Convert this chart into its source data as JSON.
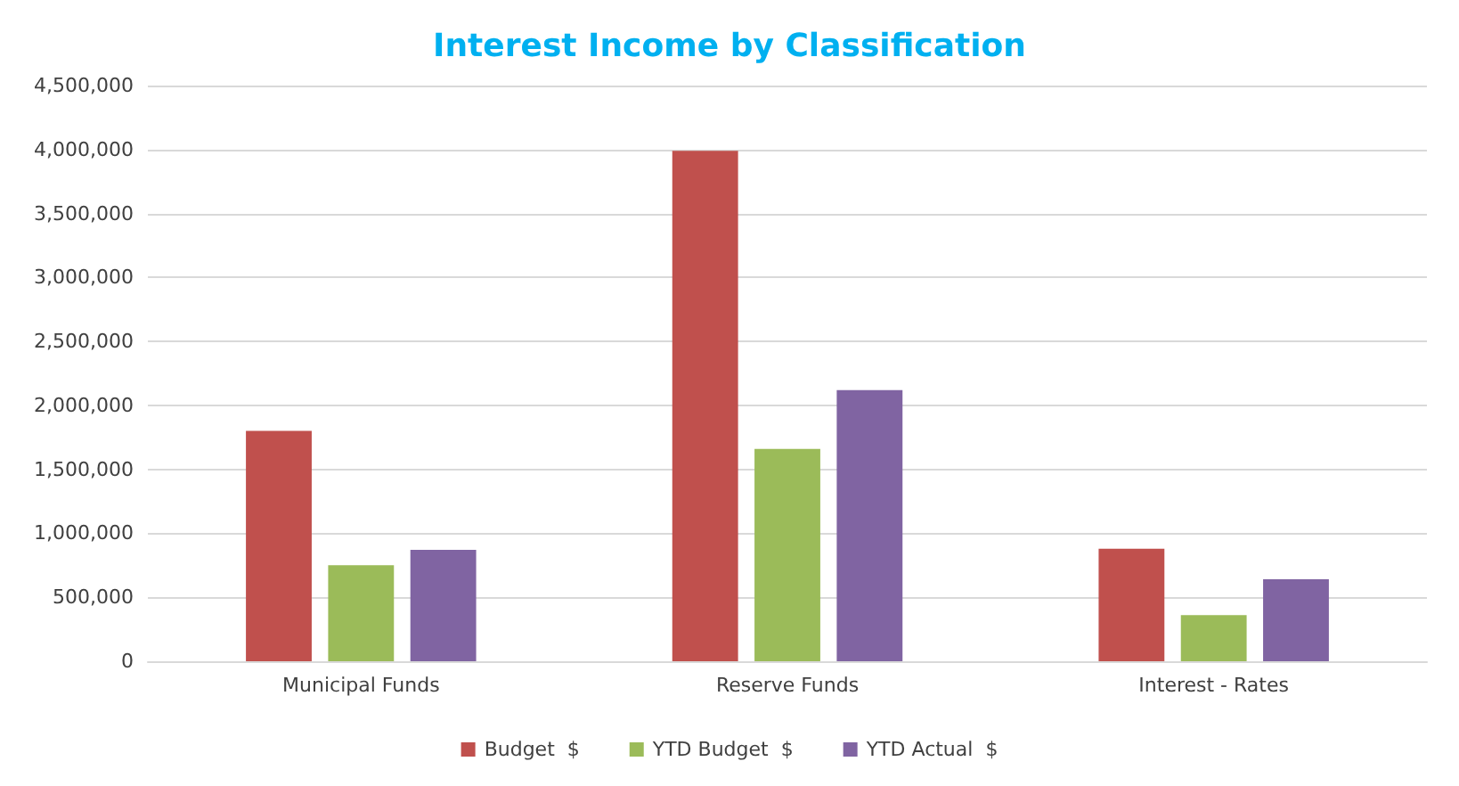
{
  "chart_data": {
    "type": "bar",
    "title": "Interest Income by Classification",
    "categories": [
      "Municipal Funds",
      "Reserve Funds",
      "Interest - Rates"
    ],
    "series": [
      {
        "name": "Budget  $",
        "color": "#c0504d",
        "values": [
          1800000,
          3990000,
          880000
        ]
      },
      {
        "name": "YTD Budget  $",
        "color": "#9bbb59",
        "values": [
          750000,
          1660000,
          360000
        ]
      },
      {
        "name": "YTD Actual  $",
        "color": "#8064a2",
        "values": [
          870000,
          2120000,
          640000
        ]
      }
    ],
    "ylim": [
      0,
      4500000
    ],
    "yticks": [
      0,
      {
        "value": 500000,
        "label": "500,000"
      },
      {
        "value": 1000000,
        "label": "1,000,000"
      },
      {
        "value": 1500000,
        "label": "1,500,000"
      },
      {
        "value": 2000000,
        "label": "2,000,000"
      },
      {
        "value": 2500000,
        "label": "2,500,000"
      },
      {
        "value": 3000000,
        "label": "3,000,000"
      },
      {
        "value": 3500000,
        "label": "3,500,000"
      },
      {
        "value": 4000000,
        "label": "4,000,000"
      },
      {
        "value": 4500000,
        "label": "4,500,000"
      }
    ],
    "grid": "y",
    "legend": "bottom"
  }
}
